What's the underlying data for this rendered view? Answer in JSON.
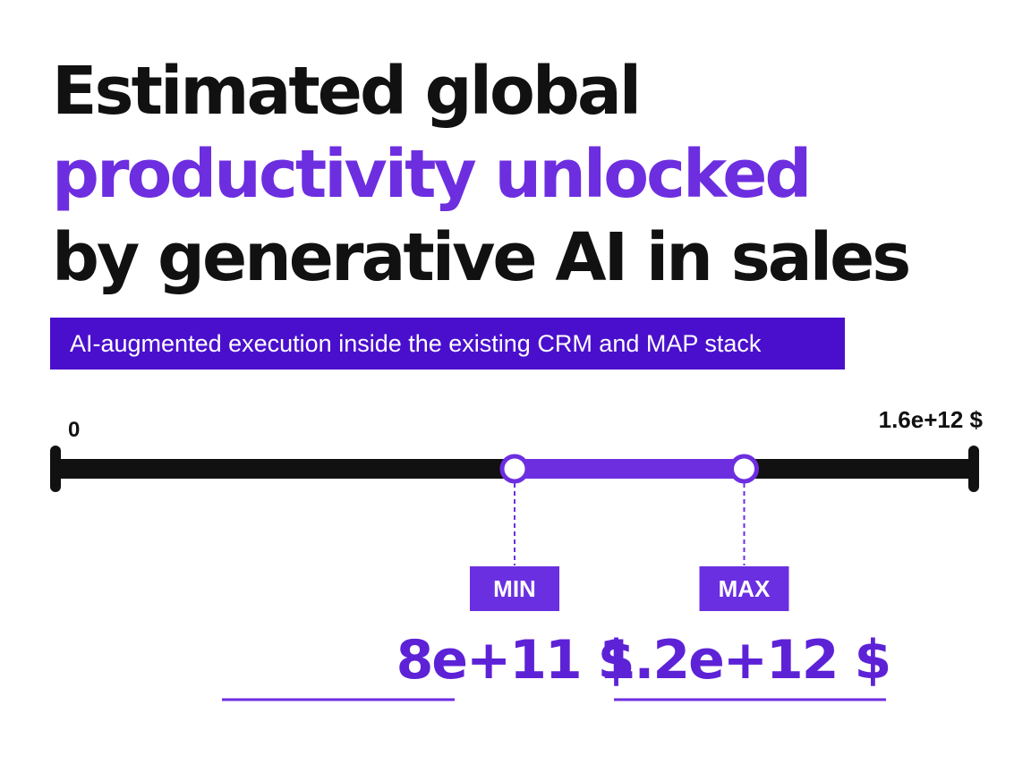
{
  "title": {
    "line1": "Estimated global",
    "line2": "productivity unlocked",
    "line3": "by generative AI in sales"
  },
  "subtitle": "AI-augmented execution inside the existing CRM and MAP stack",
  "colors": {
    "accent": "#6d2ee0",
    "banner": "#4a0fcc",
    "track": "#111111",
    "label_bg": "#6a2fe0"
  },
  "chart_data": {
    "type": "range",
    "axis": {
      "min": 0,
      "max": 1600000000000,
      "min_label": "0",
      "max_label": "1.6e+12 $"
    },
    "range": {
      "min_value": 800000000000,
      "max_value": 1200000000000,
      "min_tag": "MIN",
      "max_tag": "MAX",
      "min_text": "8e+11 $",
      "max_text": "1.2e+12 $"
    }
  }
}
